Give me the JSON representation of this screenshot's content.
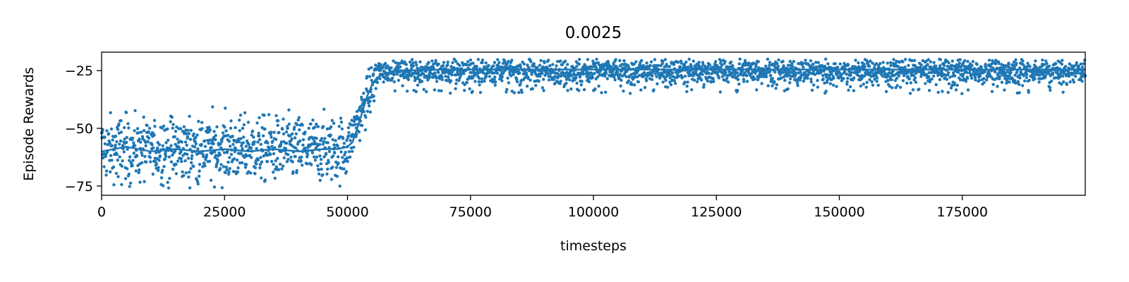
{
  "chart_data": {
    "type": "scatter",
    "title": "0.0025",
    "xlabel": "timesteps",
    "ylabel": "Episode Rewards",
    "xlim": [
      0,
      200000
    ],
    "ylim": [
      -79,
      -17
    ],
    "xticks": [
      0,
      25000,
      50000,
      75000,
      100000,
      125000,
      150000,
      175000
    ],
    "yticks": [
      -75,
      -50,
      -25
    ],
    "xtick_labels": [
      "0",
      "25000",
      "50000",
      "75000",
      "100000",
      "125000",
      "150000",
      "175000"
    ],
    "ytick_labels": [
      "−75",
      "−50",
      "−25"
    ],
    "grid": false,
    "legend": "none",
    "color": "#1f77b4",
    "series": [
      {
        "kind": "scatter-points",
        "x_range": [
          0,
          200000
        ],
        "point_count": 3200,
        "segments": [
          {
            "x": [
              0,
              50000
            ],
            "mean": -59,
            "spread": 7,
            "min": -76,
            "max": -40
          },
          {
            "x": [
              50000,
              56000
            ],
            "mean_from": -58,
            "mean_to": -27,
            "spread": 5
          },
          {
            "x": [
              56000,
              200000
            ],
            "mean": -25,
            "spread": 2.5,
            "min": -37,
            "max": -20
          }
        ]
      },
      {
        "kind": "smoothed-line",
        "x": [
          0,
          5000,
          10000,
          15000,
          20000,
          25000,
          30000,
          35000,
          40000,
          45000,
          48000,
          50000,
          51000,
          52000,
          53000,
          54000,
          55000,
          56000,
          58000,
          60000,
          70000,
          100000,
          150000,
          200000
        ],
        "y": [
          -60,
          -58,
          -60,
          -59,
          -60,
          -59,
          -60,
          -59,
          -60,
          -59,
          -59,
          -58,
          -56,
          -50,
          -43,
          -36,
          -31,
          -28,
          -26,
          -25,
          -24.5,
          -24.5,
          -24.5,
          -24.5
        ]
      }
    ]
  }
}
